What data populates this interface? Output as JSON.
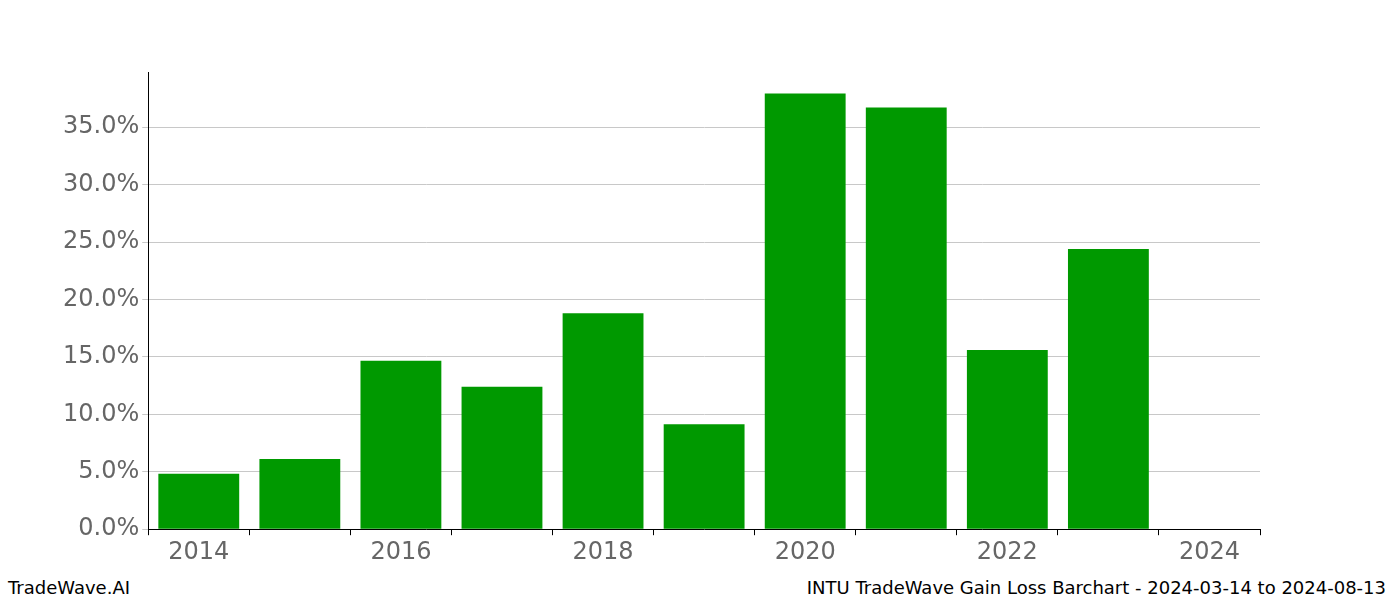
{
  "chart_data": {
    "type": "bar",
    "footer": {
      "left": "TradeWave.AI",
      "right": "INTU TradeWave Gain Loss Barchart - 2024-03-14 to 2024-08-13"
    },
    "categories": [
      "2014",
      null,
      "2016",
      null,
      "2018",
      null,
      "2020",
      null,
      "2022",
      null,
      "2024"
    ],
    "values": [
      4.83,
      6.12,
      14.66,
      12.41,
      18.79,
      9.14,
      37.93,
      36.72,
      15.6,
      24.4,
      null
    ],
    "color": "#009900",
    "ylim": [
      0,
      39.8
    ],
    "yticks": [
      {
        "value": 0,
        "label": "0.0%"
      },
      {
        "value": 5,
        "label": "5.0%"
      },
      {
        "value": 10,
        "label": "10.0%"
      },
      {
        "value": 15,
        "label": "15.0%"
      },
      {
        "value": 20,
        "label": "20.0%"
      },
      {
        "value": 25,
        "label": "25.0%"
      },
      {
        "value": 30,
        "label": "30.0%"
      },
      {
        "value": 35,
        "label": "35.0%"
      }
    ],
    "grid": true
  }
}
